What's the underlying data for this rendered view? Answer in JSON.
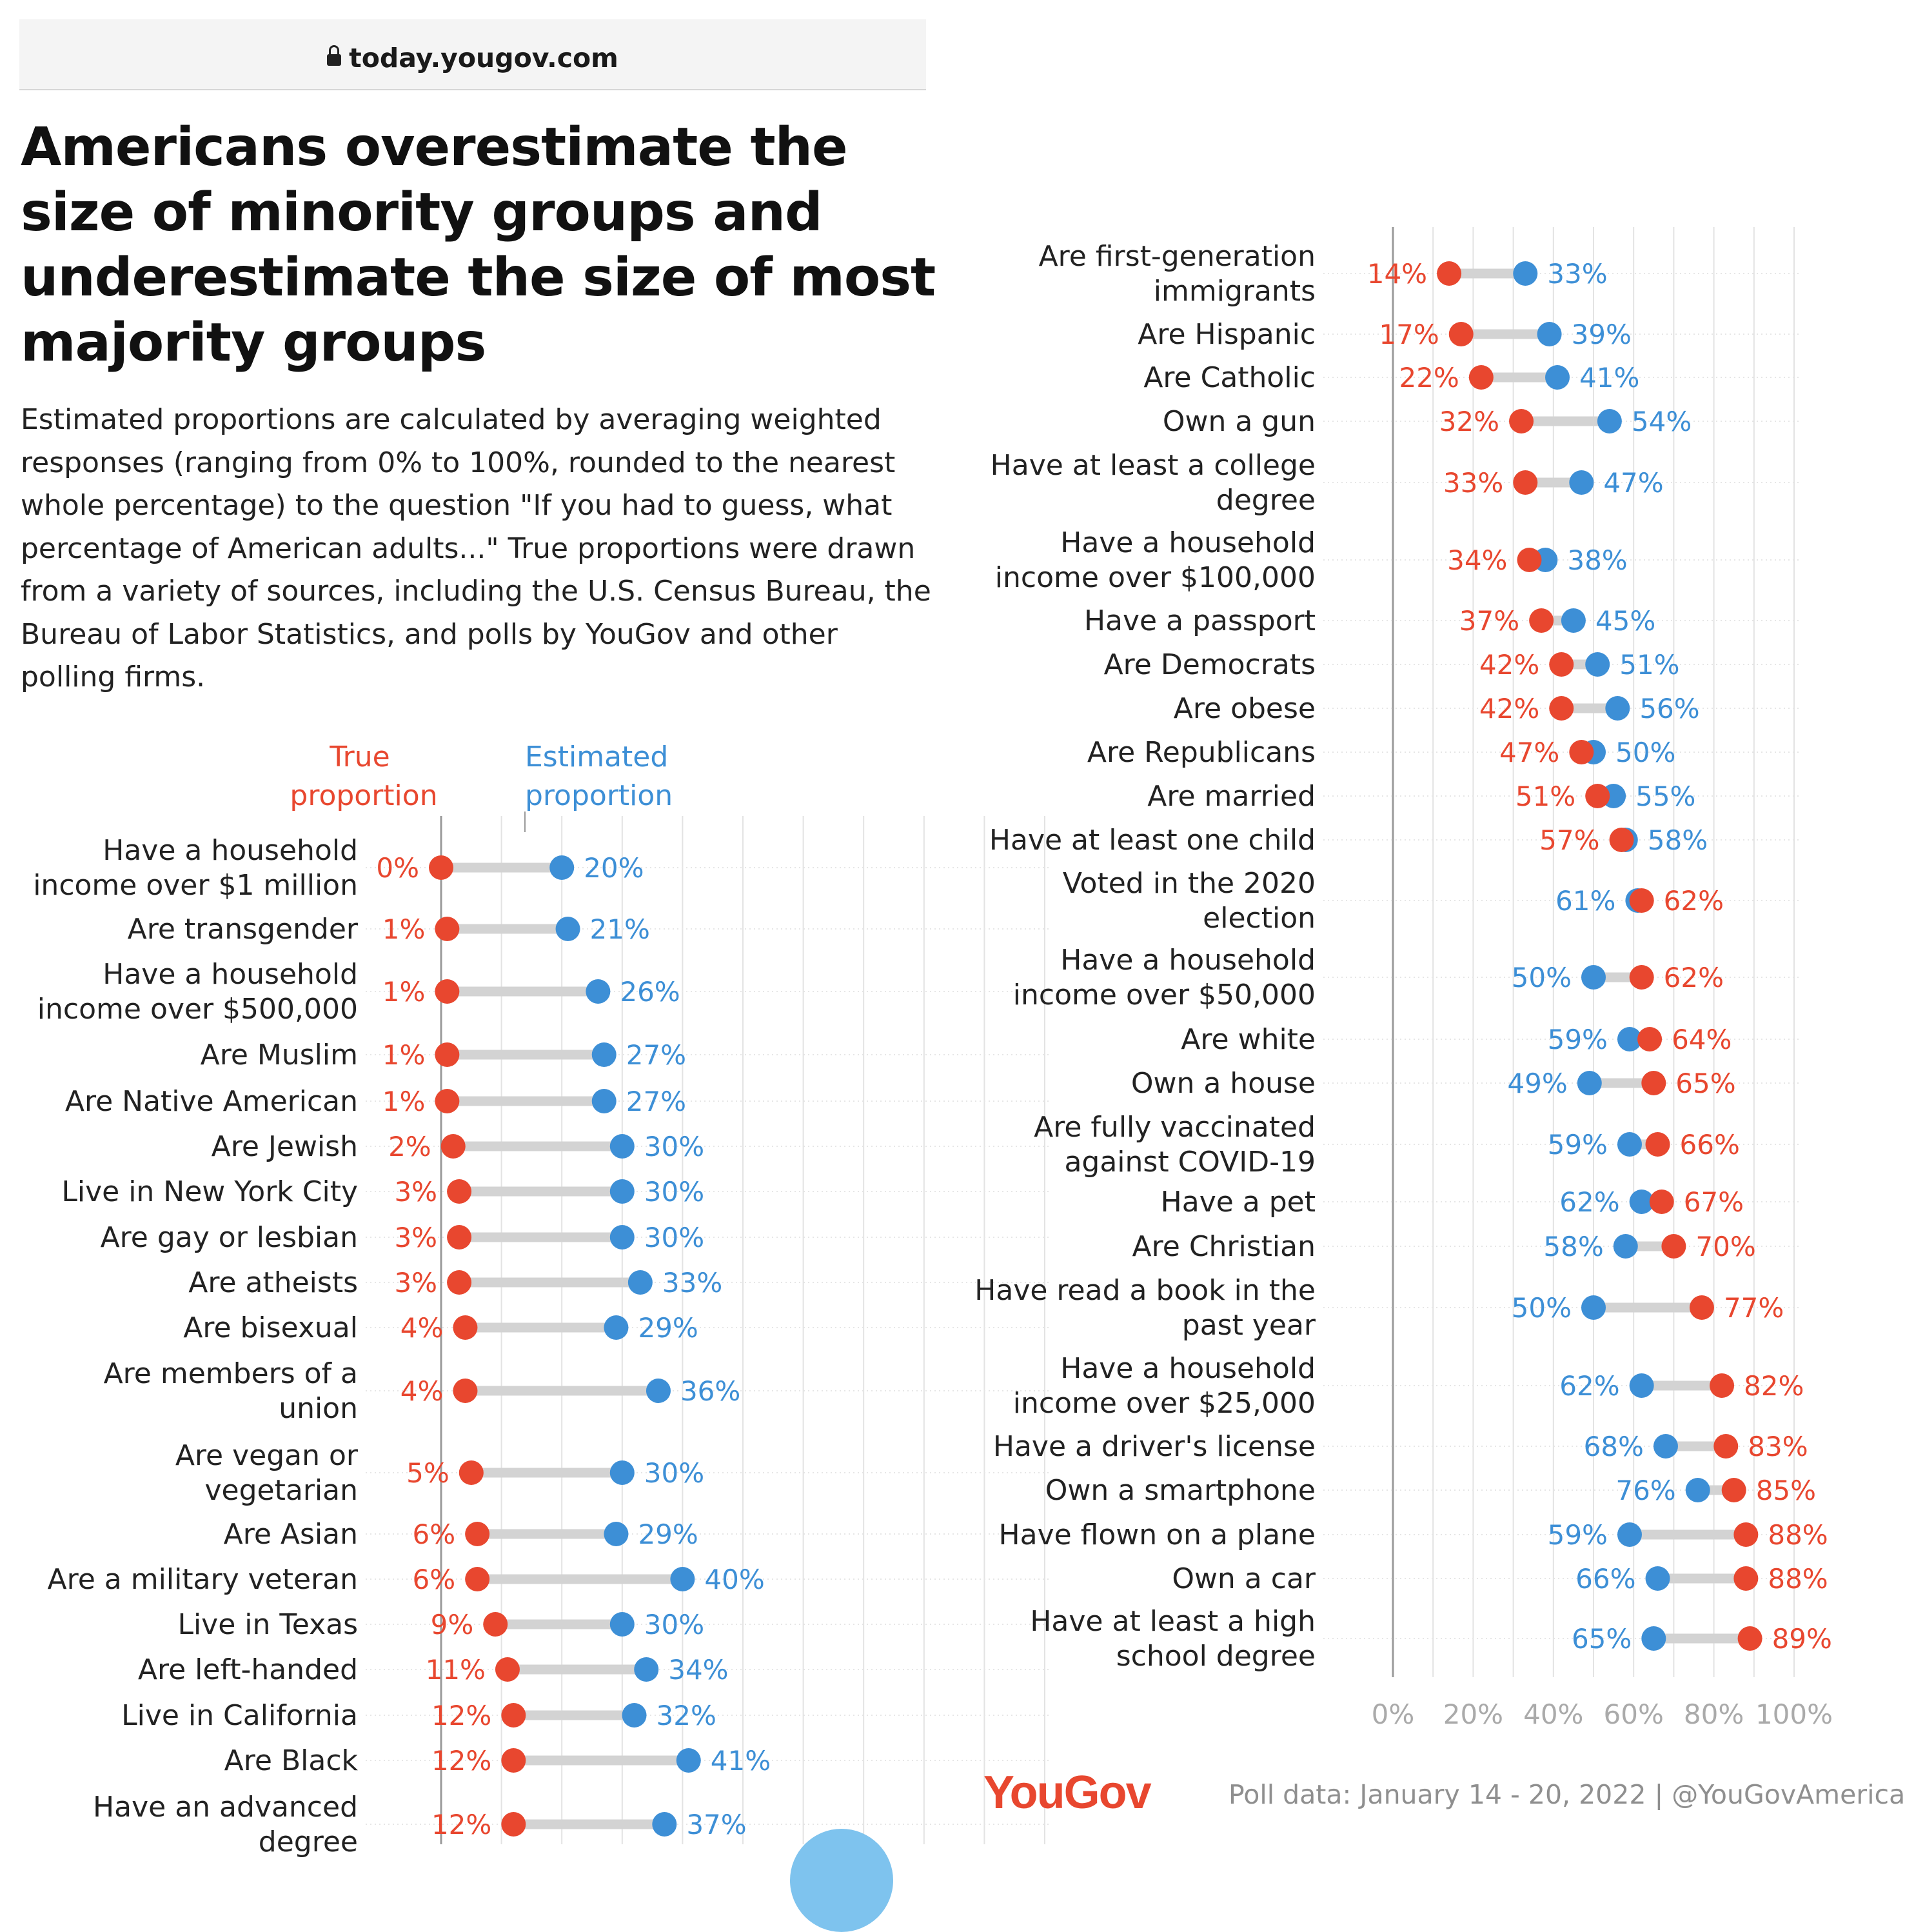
{
  "browser": {
    "url": "today.yougov.com"
  },
  "article": {
    "headline": "Americans overestimate the size of minority groups and underestimate the size of most majority groups",
    "description": "Estimated proportions are calculated by averaging weighted responses (ranging from 0% to 100%, rounded to the nearest whole percentage) to the question \"If you had to guess, what percentage of American adults...\" True proportions were drawn from a variety of sources, including the U.S. Census Bureau, the Bureau of Labor Statistics, and polls by YouGov and other polling firms."
  },
  "legend": {
    "true_label": "True proportion",
    "estimated_label": "Estimated proportion"
  },
  "footer": {
    "brand": "YouGov",
    "poll_info": "Poll data: January 14 - 20, 2022 | @YouGovAmerica"
  },
  "colors": {
    "true": "#e8472f",
    "estimated": "#3d8fd6",
    "connector": "#d3d3d3",
    "grid": "#e3e3e3",
    "axis": "#9a9a9a"
  },
  "chart_data": [
    {
      "type": "dot",
      "series": [
        {
          "name": "True proportion",
          "key": "true"
        },
        {
          "name": "Estimated proportion",
          "key": "est"
        }
      ],
      "ylim": [
        0,
        100
      ],
      "rows": [
        {
          "label": [
            "Have a household",
            "income over $1 million"
          ],
          "true": 0,
          "est": 20
        },
        {
          "label": [
            "Are transgender"
          ],
          "true": 1,
          "est": 21
        },
        {
          "label": [
            "Have a household",
            "income over $500,000"
          ],
          "true": 1,
          "est": 26
        },
        {
          "label": [
            "Are Muslim"
          ],
          "true": 1,
          "est": 27
        },
        {
          "label": [
            "Are Native American"
          ],
          "true": 1,
          "est": 27
        },
        {
          "label": [
            "Are Jewish"
          ],
          "true": 2,
          "est": 30
        },
        {
          "label": [
            "Live in New York City"
          ],
          "true": 3,
          "est": 30
        },
        {
          "label": [
            "Are gay or lesbian"
          ],
          "true": 3,
          "est": 30
        },
        {
          "label": [
            "Are atheists"
          ],
          "true": 3,
          "est": 33
        },
        {
          "label": [
            "Are bisexual"
          ],
          "true": 4,
          "est": 29
        },
        {
          "label": [
            "Are members of a",
            "union"
          ],
          "true": 4,
          "est": 36
        },
        {
          "label": [
            "Are vegan or",
            "vegetarian"
          ],
          "true": 5,
          "est": 30
        },
        {
          "label": [
            "Are Asian"
          ],
          "true": 6,
          "est": 29
        },
        {
          "label": [
            "Are a military veteran"
          ],
          "true": 6,
          "est": 40
        },
        {
          "label": [
            "Live in Texas"
          ],
          "true": 9,
          "est": 30
        },
        {
          "label": [
            "Are left-handed"
          ],
          "true": 11,
          "est": 34
        },
        {
          "label": [
            "Live in California"
          ],
          "true": 12,
          "est": 32
        },
        {
          "label": [
            "Are Black"
          ],
          "true": 12,
          "est": 41
        },
        {
          "label": [
            "Have an advanced",
            "degree"
          ],
          "true": 12,
          "est": 37
        }
      ]
    },
    {
      "type": "dot",
      "series": [
        {
          "name": "True proportion",
          "key": "true"
        },
        {
          "name": "Estimated proportion",
          "key": "est"
        }
      ],
      "xlim": [
        0,
        100
      ],
      "x_ticks": [
        "0%",
        "20%",
        "40%",
        "60%",
        "80%",
        "100%"
      ],
      "rows": [
        {
          "label": [
            "Are first-generation",
            "immigrants"
          ],
          "true": 14,
          "est": 33
        },
        {
          "label": [
            "Are Hispanic"
          ],
          "true": 17,
          "est": 39
        },
        {
          "label": [
            "Are Catholic"
          ],
          "true": 22,
          "est": 41
        },
        {
          "label": [
            "Own a gun"
          ],
          "true": 32,
          "est": 54
        },
        {
          "label": [
            "Have at least a college",
            "degree"
          ],
          "true": 33,
          "est": 47
        },
        {
          "label": [
            "Have a household",
            "income over $100,000"
          ],
          "true": 34,
          "est": 38
        },
        {
          "label": [
            "Have a passport"
          ],
          "true": 37,
          "est": 45
        },
        {
          "label": [
            "Are Democrats"
          ],
          "true": 42,
          "est": 51
        },
        {
          "label": [
            "Are obese"
          ],
          "true": 42,
          "est": 56
        },
        {
          "label": [
            "Are Republicans"
          ],
          "true": 47,
          "est": 50
        },
        {
          "label": [
            "Are married"
          ],
          "true": 51,
          "est": 55
        },
        {
          "label": [
            "Have at least one child"
          ],
          "true": 57,
          "est": 58
        },
        {
          "label": [
            "Voted in the 2020",
            "election"
          ],
          "true": 62,
          "est": 61
        },
        {
          "label": [
            "Have a household",
            "income over $50,000"
          ],
          "true": 62,
          "est": 50
        },
        {
          "label": [
            "Are white"
          ],
          "true": 64,
          "est": 59
        },
        {
          "label": [
            "Own a house"
          ],
          "true": 65,
          "est": 49
        },
        {
          "label": [
            "Are fully vaccinated",
            "against COVID-19"
          ],
          "true": 66,
          "est": 59
        },
        {
          "label": [
            "Have a pet"
          ],
          "true": 67,
          "est": 62
        },
        {
          "label": [
            "Are Christian"
          ],
          "true": 70,
          "est": 58
        },
        {
          "label": [
            "Have read a book in the",
            "past year"
          ],
          "true": 77,
          "est": 50
        },
        {
          "label": [
            "Have a household",
            "income over $25,000"
          ],
          "true": 82,
          "est": 62
        },
        {
          "label": [
            "Have a driver's license"
          ],
          "true": 83,
          "est": 68
        },
        {
          "label": [
            "Own a smartphone"
          ],
          "true": 85,
          "est": 76
        },
        {
          "label": [
            "Have flown on a plane"
          ],
          "true": 88,
          "est": 59
        },
        {
          "label": [
            "Own a car"
          ],
          "true": 88,
          "est": 66
        },
        {
          "label": [
            "Have at least a high",
            "school degree"
          ],
          "true": 89,
          "est": 65
        }
      ]
    }
  ]
}
